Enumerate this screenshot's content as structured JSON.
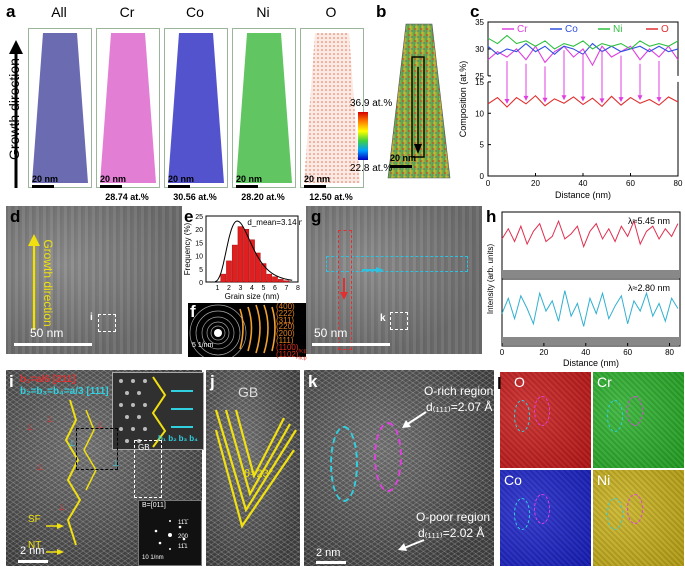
{
  "panels": {
    "a": {
      "letter": "a",
      "growth_label": "Growth direction",
      "elements": [
        "All",
        "Cr",
        "Co",
        "Ni",
        "O"
      ],
      "scalebar": "20 nm",
      "compositions": [
        "",
        "28.74 at.%",
        "30.56 at.%",
        "28.20 at.%",
        "12.50 at.%"
      ]
    },
    "b": {
      "letter": "b",
      "colorbar_max": "36.9 at.%",
      "colorbar_min": "22.8 at.%",
      "scalebar": "20 nm"
    },
    "c": {
      "letter": "c"
    },
    "d": {
      "letter": "d",
      "growth_label": "Growth direction",
      "marker": "i",
      "scalebar": "50 nm"
    },
    "e": {
      "letter": "e",
      "annotation": "d_mean=3.14 nm"
    },
    "f": {
      "letter": "f",
      "scale": "5 1/nm",
      "rings": [
        "(400)",
        "(222)",
        "(311)",
        "(220)",
        "(200)",
        "(111)",
        "(1100)",
        "(1102)"
      ],
      "ring_subs": [
        "",
        "",
        "",
        "",
        "",
        "",
        "hcp",
        "hcp"
      ]
    },
    "g": {
      "letter": "g",
      "marker": "k",
      "scalebar": "50 nm"
    },
    "h": {
      "letter": "h"
    },
    "i": {
      "letter": "i",
      "b1": "b₁=a/6 [211]",
      "b2": "b₂=b₃=b₄=a/3 [111]",
      "gb": "GB",
      "sf": "SF",
      "nt": "NT",
      "b_labels": [
        "b₁",
        "b₂",
        "b₃",
        "b₄"
      ],
      "scalebar": "2 nm",
      "fft_zone": "B=[011]",
      "fft_spots": [
        "11̄1̄",
        "200",
        "11̄1"
      ],
      "fft_scale": "10 1/nm"
    },
    "j": {
      "letter": "j",
      "gb": "GB",
      "angle": "θ=23°"
    },
    "k": {
      "letter": "k",
      "orich_title": "O-rich region",
      "orich_d": "d₍₁₁₁₎=2.07 Å",
      "opoor_title": "O-poor region",
      "opoor_d": "d₍₁₁₁₎=2.02 Å",
      "scalebar": "2 nm"
    },
    "l": {
      "letter": "l",
      "maps": [
        "O",
        "Cr",
        "Co",
        "Ni"
      ]
    }
  },
  "chart_data": [
    {
      "type": "line",
      "panel": "c",
      "xlabel": "Distance (nm)",
      "ylabel": "Composition (at.%)",
      "xlim": [
        0,
        80
      ],
      "ylim": [
        0,
        35
      ],
      "y_break": [
        15,
        25
      ],
      "xticks": [
        0,
        20,
        40,
        60,
        80
      ],
      "yticks": [
        0,
        5,
        10,
        15,
        25,
        30,
        35
      ],
      "legend": "top",
      "series": [
        {
          "name": "Cr",
          "color": "#e040e0",
          "x": [
            0,
            4,
            8,
            12,
            16,
            20,
            24,
            28,
            32,
            36,
            40,
            44,
            48,
            52,
            56,
            60,
            64,
            68,
            72,
            76,
            80
          ],
          "y": [
            28.0,
            29.5,
            28.5,
            30.0,
            28.0,
            30.5,
            27.5,
            29.5,
            30.5,
            28.5,
            30.0,
            27.0,
            30.5,
            28.5,
            29.5,
            30.5,
            28.0,
            30.0,
            28.5,
            30.5,
            28.0
          ]
        },
        {
          "name": "Co",
          "color": "#3050e0",
          "x": [
            0,
            4,
            8,
            12,
            16,
            20,
            24,
            28,
            32,
            36,
            40,
            44,
            48,
            52,
            56,
            60,
            64,
            68,
            72,
            76,
            80
          ],
          "y": [
            30.5,
            29.0,
            30.0,
            29.5,
            31.0,
            29.5,
            30.5,
            29.0,
            30.5,
            30.0,
            29.0,
            31.0,
            29.5,
            30.5,
            29.5,
            30.0,
            30.5,
            29.5,
            30.5,
            29.5,
            30.0
          ]
        },
        {
          "name": "Ni",
          "color": "#30c040",
          "x": [
            0,
            4,
            8,
            12,
            16,
            20,
            24,
            28,
            32,
            36,
            40,
            44,
            48,
            52,
            56,
            60,
            64,
            68,
            72,
            76,
            80
          ],
          "y": [
            32.0,
            31.0,
            32.5,
            31.0,
            31.5,
            30.5,
            31.5,
            30.0,
            31.0,
            30.5,
            31.5,
            30.0,
            31.0,
            30.5,
            31.0,
            30.0,
            31.5,
            30.5,
            31.0,
            30.5,
            31.5
          ]
        },
        {
          "name": "O",
          "color": "#e03030",
          "x": [
            0,
            4,
            8,
            12,
            16,
            20,
            24,
            28,
            32,
            36,
            40,
            44,
            48,
            52,
            56,
            60,
            64,
            68,
            72,
            76,
            80
          ],
          "y": [
            11.5,
            12.5,
            11.0,
            12.5,
            11.5,
            12.8,
            11.2,
            12.3,
            11.6,
            12.6,
            11.4,
            12.4,
            11.1,
            12.7,
            11.3,
            12.5,
            11.6,
            12.2,
            11.3,
            12.6,
            11.8
          ]
        }
      ]
    },
    {
      "type": "bar",
      "panel": "e",
      "xlabel": "Grain size (nm)",
      "ylabel": "Frequency (%)",
      "xlim": [
        0,
        8
      ],
      "ylim": [
        0,
        25
      ],
      "xticks": [
        1,
        2,
        3,
        4,
        5,
        6,
        7,
        8
      ],
      "yticks": [
        0,
        5,
        10,
        15,
        20,
        25
      ],
      "x": [
        1.5,
        2.0,
        2.5,
        3.0,
        3.5,
        4.0,
        4.5,
        5.0,
        5.5,
        6.0,
        6.5,
        7.0
      ],
      "values": [
        3,
        8,
        14,
        21,
        20,
        16,
        11,
        7,
        3,
        2,
        1,
        0.5
      ]
    },
    {
      "type": "line",
      "panel": "h",
      "xlabel": "Distance (nm)",
      "ylabel": "Intensity (arb. units)",
      "xlim": [
        0,
        85
      ],
      "xticks": [
        0,
        20,
        40,
        60,
        80
      ],
      "series": [
        {
          "name": "λ≈5.45 nm",
          "color": "#e03050",
          "x": [
            0,
            3,
            6,
            9,
            12,
            15,
            18,
            21,
            24,
            27,
            30,
            33,
            36,
            39,
            42,
            45,
            48,
            51,
            54,
            57,
            60,
            63,
            66,
            69,
            72,
            75,
            78,
            81,
            84
          ],
          "y": [
            0.55,
            0.75,
            0.5,
            0.8,
            0.45,
            0.7,
            0.85,
            0.5,
            0.6,
            0.9,
            0.55,
            0.65,
            0.8,
            0.4,
            0.7,
            0.85,
            0.55,
            0.75,
            0.5,
            0.8,
            0.6,
            0.9,
            0.45,
            0.7,
            0.8,
            0.55,
            0.75,
            0.6,
            0.85
          ]
        },
        {
          "name": "λ≈2.80 nm",
          "color": "#30b0d0",
          "x": [
            0,
            3,
            6,
            9,
            12,
            15,
            18,
            21,
            24,
            27,
            30,
            33,
            36,
            39,
            42,
            45,
            48,
            51,
            54,
            57,
            60,
            63,
            66,
            69,
            72,
            75,
            78,
            81,
            84
          ],
          "y": [
            0.4,
            0.7,
            0.3,
            0.75,
            0.5,
            0.2,
            0.8,
            0.45,
            0.65,
            0.25,
            0.85,
            0.35,
            0.6,
            0.15,
            0.7,
            0.4,
            0.8,
            0.3,
            0.55,
            0.75,
            0.2,
            0.65,
            0.45,
            0.8,
            0.35,
            0.6,
            0.25,
            0.7,
            0.5
          ]
        }
      ]
    }
  ]
}
